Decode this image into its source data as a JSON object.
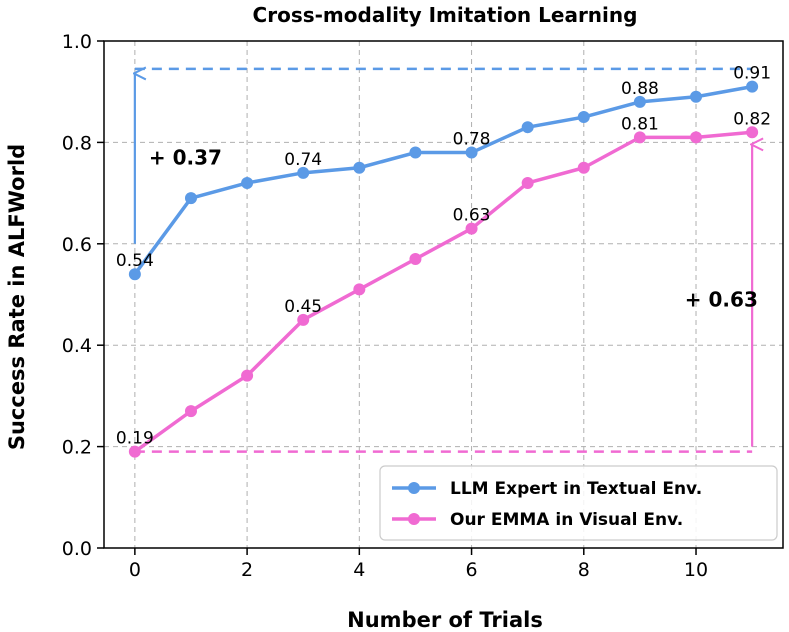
{
  "chart_data": {
    "type": "line",
    "title": "Cross-modality Imitation Learning",
    "xlabel": "Number of Trials",
    "ylabel": "Success Rate in ALFWorld",
    "xlim": [
      -0.55,
      11.55
    ],
    "ylim": [
      0.0,
      1.0
    ],
    "xticks": [
      "0",
      "2",
      "4",
      "6",
      "8",
      "10"
    ],
    "yticks": [
      "0.0",
      "0.2",
      "0.4",
      "0.6",
      "0.8",
      "1.0"
    ],
    "grid": true,
    "legend_position": "bottom-right",
    "x": [
      0,
      1,
      2,
      3,
      4,
      5,
      6,
      7,
      8,
      9,
      10,
      11
    ],
    "series": [
      {
        "name": "LLM Expert in Textual Env.",
        "color": "#5b9ae6",
        "values": [
          0.54,
          0.69,
          0.72,
          0.74,
          0.75,
          0.78,
          0.78,
          0.83,
          0.85,
          0.88,
          0.89,
          0.91
        ],
        "data_labels": [
          {
            "x": 0,
            "y": 0.54,
            "text": "0.54"
          },
          {
            "x": 3,
            "y": 0.74,
            "text": "0.74"
          },
          {
            "x": 6,
            "y": 0.78,
            "text": "0.78"
          },
          {
            "x": 9,
            "y": 0.88,
            "text": "0.88"
          },
          {
            "x": 11,
            "y": 0.91,
            "text": "0.91"
          }
        ]
      },
      {
        "name": "Our EMMA in Visual Env.",
        "color": "#f06ad2",
        "values": [
          0.19,
          0.27,
          0.34,
          0.45,
          0.51,
          0.57,
          0.63,
          0.72,
          0.75,
          0.81,
          0.81,
          0.82
        ],
        "data_labels": [
          {
            "x": 0,
            "y": 0.19,
            "text": "0.19"
          },
          {
            "x": 3,
            "y": 0.45,
            "text": "0.45"
          },
          {
            "x": 6,
            "y": 0.63,
            "text": "0.63"
          },
          {
            "x": 9,
            "y": 0.81,
            "text": "0.81"
          },
          {
            "x": 11,
            "y": 0.82,
            "text": "0.82"
          }
        ]
      }
    ],
    "reference_lines": [
      {
        "y": 0.945,
        "color": "#5b9ae6"
      },
      {
        "y": 0.19,
        "color": "#f06ad2"
      }
    ],
    "annotations": [
      {
        "text": "+ 0.37",
        "x": 0.25,
        "y": 0.77,
        "color": "#5b9ae6",
        "arrow_x": 0,
        "arrow_from": 0.6,
        "arrow_to": 0.94
      },
      {
        "text": "+ 0.63",
        "x": 9.8,
        "y": 0.49,
        "color": "#f06ad2",
        "arrow_x": 11,
        "arrow_from": 0.2,
        "arrow_to": 0.8
      }
    ]
  }
}
